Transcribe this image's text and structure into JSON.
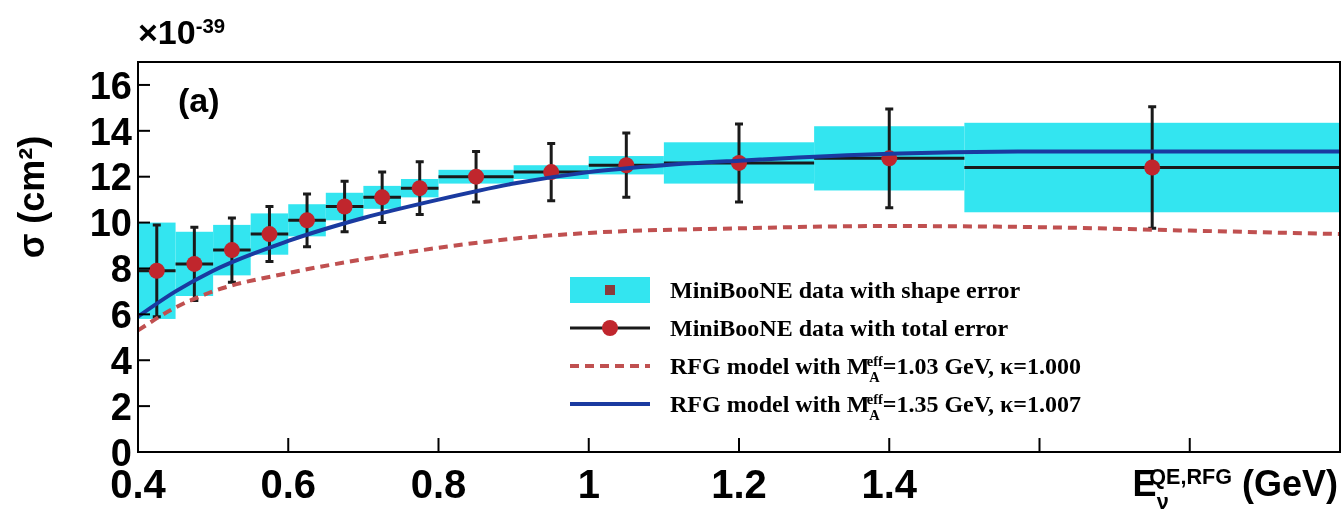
{
  "chart_data": {
    "type": "scatter",
    "xlabel": "E$_{ν}$$^{QE,RFG}$ (GeV)",
    "ylabel": "σ (cm²)",
    "annotations": [
      "×10$^{-39}$",
      "(a)"
    ],
    "xlim": [
      0.4,
      2.0
    ],
    "xticks": [
      0.4,
      0.6,
      0.8,
      1,
      1.2,
      1.4,
      {
        "value": 1.6,
        "label": null
      },
      {
        "value": 1.8,
        "label": null
      }
    ],
    "ylim": [
      0,
      17
    ],
    "yticks": [
      0,
      2,
      4,
      6,
      8,
      10,
      12,
      14,
      16
    ],
    "grid": false,
    "legend": "bottom right",
    "series": [
      {
        "name": "MiniBooNE data with shape error",
        "type": "bar",
        "color": "#33e5f0",
        "x": [
          0.425,
          0.475,
          0.525,
          0.575,
          0.625,
          0.675,
          0.725,
          0.775,
          0.85,
          0.95,
          1.05,
          1.2,
          1.4,
          1.75
        ],
        "base": [
          5.8,
          6.8,
          7.7,
          8.6,
          9.4,
          10.1,
          10.6,
          11.1,
          11.7,
          11.9,
          12.1,
          11.7,
          11.4,
          10.45
        ],
        "values": [
          4.2,
          2.8,
          2.2,
          1.8,
          1.4,
          1.2,
          1.0,
          0.8,
          0.6,
          0.6,
          0.8,
          1.8,
          2.8,
          3.9
        ]
      },
      {
        "name": "MiniBooNE data with total error",
        "color": "#c0262d",
        "marker": "circle",
        "x": [
          0.425,
          0.475,
          0.525,
          0.575,
          0.625,
          0.675,
          0.725,
          0.775,
          0.85,
          0.95,
          1.05,
          1.2,
          1.4,
          1.75
        ],
        "values": [
          7.9,
          8.2,
          8.8,
          9.5,
          10.1,
          10.7,
          11.1,
          11.5,
          12.0,
          12.2,
          12.5,
          12.6,
          12.8,
          12.4
        ],
        "errors": [
          2.0,
          1.6,
          1.4,
          1.2,
          1.15,
          1.1,
          1.1,
          1.15,
          1.1,
          1.25,
          1.4,
          1.7,
          2.15,
          2.65
        ],
        "xerrors": [
          0.025,
          0.025,
          0.025,
          0.025,
          0.025,
          0.025,
          0.025,
          0.025,
          0.05,
          0.05,
          0.05,
          0.1,
          0.1,
          0.25
        ]
      },
      {
        "name": "RFG model with M$_{A}$$^{eff}$=1.03 GeV, κ=1.000",
        "type": "line",
        "color": "#c05050",
        "line_style": "dashed",
        "x": [
          0.4,
          0.45,
          0.5,
          0.6,
          0.7,
          0.8,
          0.9,
          1.0,
          1.2,
          1.4,
          1.6,
          1.8,
          2.0
        ],
        "values": [
          5.3,
          6.3,
          7.0,
          7.8,
          8.4,
          8.9,
          9.3,
          9.55,
          9.75,
          9.85,
          9.8,
          9.65,
          9.5
        ]
      },
      {
        "name": "RFG model with M$_{A}$$^{eff}$=1.35 GeV, κ=1.007",
        "type": "line",
        "color": "#1a3aa0",
        "line_style": "solid",
        "x": [
          0.4,
          0.45,
          0.5,
          0.6,
          0.7,
          0.8,
          0.9,
          1.0,
          1.1,
          1.2,
          1.4,
          1.6,
          1.8,
          2.0
        ],
        "values": [
          5.9,
          7.0,
          7.9,
          9.2,
          10.2,
          11.0,
          11.7,
          12.2,
          12.5,
          12.7,
          13.0,
          13.1,
          13.1,
          13.1
        ]
      }
    ]
  }
}
